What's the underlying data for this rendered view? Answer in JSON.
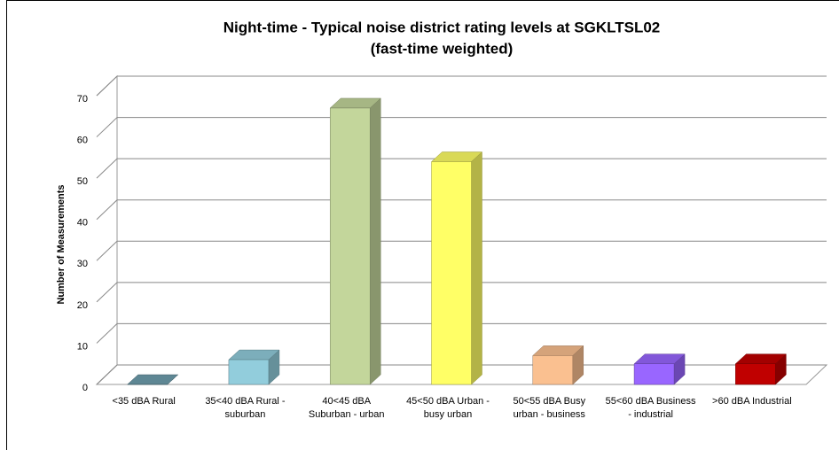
{
  "chart_data": {
    "type": "bar3d",
    "title": "Night-time - Typical noise district rating levels at SGKLTSL02",
    "subtitle": "(fast-time weighted)",
    "y_label": "Number of Measurements",
    "categories": [
      "<35 dBA Rural",
      "35<40 dBA Rural - suburban",
      "40<45 dBA Suburban - urban",
      "45<50 dBA Urban - busy urban",
      "50<55 dBA Busy urban - business",
      "55<60 dBA Business - industrial",
      ">60 dBA Industrial"
    ],
    "values": [
      0,
      6,
      67,
      54,
      7,
      5,
      5
    ],
    "colors": [
      "#6e9fae",
      "#92cddc",
      "#c3d69b",
      "#ffff66",
      "#fac090",
      "#9966ff",
      "#c00000"
    ],
    "ylim": [
      0,
      70
    ],
    "yticks": [
      0,
      10,
      20,
      30,
      40,
      50,
      60,
      70
    ],
    "grid": true
  }
}
